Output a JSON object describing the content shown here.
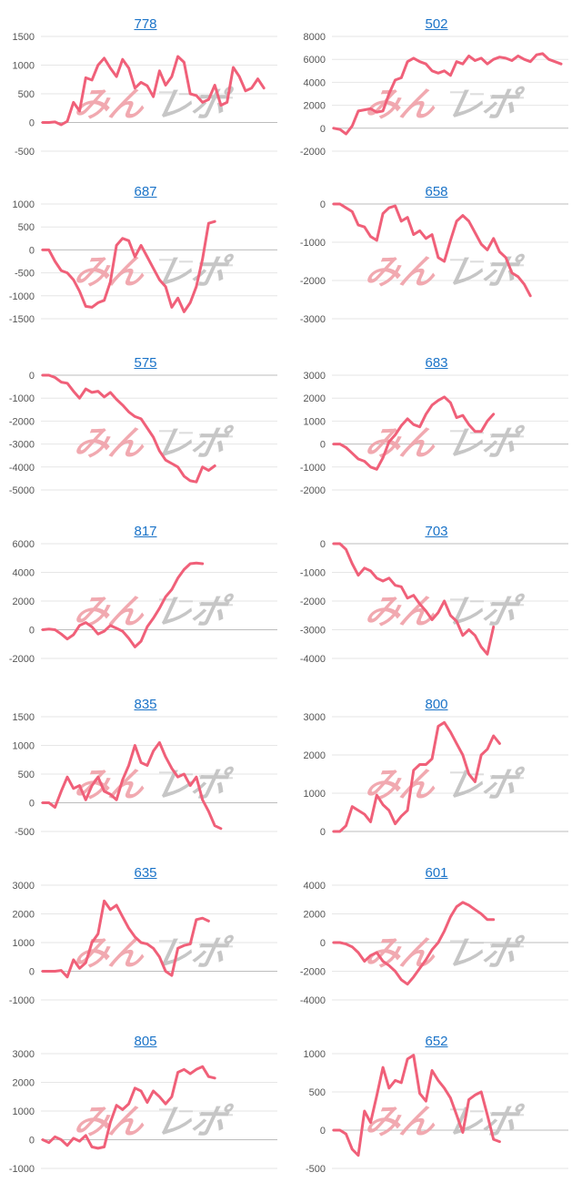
{
  "colors": {
    "line": "#f06079",
    "title_link": "#1a73c8",
    "grid": "#e6e6e6",
    "zero_line": "#bdbdbd",
    "watermark_pink": "#f0a0a8",
    "watermark_gray": "#c0c0c0"
  },
  "watermark": {
    "text_left": "みん",
    "text_right": "レポ"
  },
  "chart_data": [
    {
      "type": "line",
      "title": "778",
      "ylim": [
        -500,
        1500
      ],
      "yticks": [
        1500,
        1000,
        500,
        0,
        -500
      ],
      "values": [
        0,
        0,
        10,
        -40,
        20,
        350,
        200,
        780,
        740,
        1000,
        1120,
        950,
        800,
        1100,
        950,
        600,
        700,
        640,
        450,
        900,
        650,
        800,
        1150,
        1050,
        500,
        470,
        350,
        400,
        650,
        300,
        350,
        960,
        800,
        550,
        600,
        760,
        600
      ]
    },
    {
      "type": "line",
      "title": "502",
      "ylim": [
        -2000,
        8000
      ],
      "yticks": [
        8000,
        6000,
        4000,
        2000,
        0,
        -2000
      ],
      "values": [
        0,
        -100,
        -500,
        200,
        1500,
        1600,
        1700,
        1400,
        1500,
        3000,
        4200,
        4400,
        5800,
        6100,
        5800,
        5600,
        5000,
        4800,
        5000,
        4600,
        5800,
        5600,
        6300,
        5900,
        6100,
        5600,
        6000,
        6200,
        6100,
        5900,
        6300,
        6000,
        5800,
        6400,
        6500,
        6000,
        5800,
        5600
      ]
    },
    {
      "type": "line",
      "title": "687",
      "ylim": [
        -1500,
        1000
      ],
      "yticks": [
        1000,
        500,
        0,
        -500,
        -1000,
        -1500
      ],
      "values": [
        0,
        0,
        -250,
        -450,
        -500,
        -650,
        -900,
        -1230,
        -1250,
        -1150,
        -1100,
        -700,
        100,
        250,
        200,
        -150,
        100,
        -150,
        -400,
        -650,
        -800,
        -1250,
        -1050,
        -1350,
        -1150,
        -800,
        -200,
        580,
        620
      ]
    },
    {
      "type": "line",
      "title": "658",
      "ylim": [
        -3000,
        0
      ],
      "yticks": [
        0,
        -1000,
        -2000,
        -3000
      ],
      "values": [
        0,
        0,
        -100,
        -200,
        -550,
        -600,
        -850,
        -950,
        -250,
        -100,
        -50,
        -450,
        -350,
        -800,
        -700,
        -900,
        -800,
        -1400,
        -1500,
        -950,
        -450,
        -300,
        -450,
        -750,
        -1050,
        -1200,
        -900,
        -1250,
        -1400,
        -1800,
        -1900,
        -2100,
        -2400
      ]
    },
    {
      "type": "line",
      "title": "575",
      "ylim": [
        -5000,
        0
      ],
      "yticks": [
        0,
        -1000,
        -2000,
        -3000,
        -4000,
        -5000
      ],
      "values": [
        0,
        0,
        -100,
        -300,
        -350,
        -700,
        -1000,
        -600,
        -750,
        -700,
        -950,
        -750,
        -1050,
        -1300,
        -1600,
        -1800,
        -1900,
        -2300,
        -2700,
        -3300,
        -3700,
        -3850,
        -4000,
        -4400,
        -4600,
        -4650,
        -4000,
        -4150,
        -3950
      ]
    },
    {
      "type": "line",
      "title": "683",
      "ylim": [
        -2000,
        3000
      ],
      "yticks": [
        3000,
        2000,
        1000,
        0,
        -1000,
        -2000
      ],
      "values": [
        0,
        0,
        -150,
        -400,
        -650,
        -750,
        -1000,
        -1100,
        -600,
        100,
        400,
        800,
        1100,
        850,
        750,
        1300,
        1700,
        1900,
        2050,
        1800,
        1150,
        1250,
        850,
        550,
        550,
        1000,
        1300
      ]
    },
    {
      "type": "line",
      "title": "817",
      "ylim": [
        -2000,
        6000
      ],
      "yticks": [
        6000,
        4000,
        2000,
        0,
        -2000
      ],
      "values": [
        0,
        50,
        0,
        -300,
        -650,
        -350,
        300,
        500,
        200,
        -300,
        -100,
        300,
        100,
        -100,
        -600,
        -1200,
        -800,
        200,
        800,
        1500,
        2300,
        2800,
        3600,
        4200,
        4600,
        4650,
        4600
      ]
    },
    {
      "type": "line",
      "title": "703",
      "ylim": [
        -4000,
        0
      ],
      "yticks": [
        0,
        -1000,
        -2000,
        -3000,
        -4000
      ],
      "values": [
        0,
        0,
        -200,
        -700,
        -1100,
        -850,
        -950,
        -1200,
        -1300,
        -1200,
        -1450,
        -1500,
        -1900,
        -1800,
        -2100,
        -2350,
        -2650,
        -2400,
        -2000,
        -2500,
        -2700,
        -3200,
        -3000,
        -3200,
        -3600,
        -3850,
        -2900
      ]
    },
    {
      "type": "line",
      "title": "835",
      "ylim": [
        -500,
        1500
      ],
      "yticks": [
        1500,
        1000,
        500,
        0,
        -500
      ],
      "values": [
        0,
        0,
        -80,
        200,
        450,
        250,
        300,
        50,
        300,
        450,
        200,
        150,
        50,
        400,
        650,
        1000,
        700,
        650,
        900,
        1050,
        800,
        600,
        450,
        500,
        300,
        450,
        50,
        -150,
        -400,
        -450
      ]
    },
    {
      "type": "line",
      "title": "800",
      "ylim": [
        0,
        3000
      ],
      "yticks": [
        3000,
        2000,
        1000,
        0
      ],
      "values": [
        0,
        0,
        150,
        650,
        550,
        450,
        250,
        950,
        700,
        550,
        200,
        400,
        550,
        1600,
        1750,
        1750,
        1900,
        2750,
        2850,
        2600,
        2300,
        2000,
        1500,
        1300,
        2000,
        2150,
        2500,
        2300
      ]
    },
    {
      "type": "line",
      "title": "635",
      "ylim": [
        -1000,
        3000
      ],
      "yticks": [
        3000,
        2000,
        1000,
        0,
        -1000
      ],
      "values": [
        0,
        0,
        0,
        30,
        -200,
        400,
        100,
        300,
        1000,
        1300,
        2450,
        2150,
        2300,
        1900,
        1500,
        1200,
        1000,
        950,
        800,
        500,
        0,
        -150,
        800,
        900,
        950,
        1800,
        1850,
        1750
      ]
    },
    {
      "type": "line",
      "title": "601",
      "ylim": [
        -4000,
        4000
      ],
      "yticks": [
        4000,
        2000,
        0,
        -2000,
        -4000
      ],
      "values": [
        0,
        0,
        -100,
        -300,
        -700,
        -1300,
        -900,
        -700,
        -1300,
        -1600,
        -2000,
        -2600,
        -2900,
        -2400,
        -1800,
        -1200,
        -500,
        0,
        800,
        1800,
        2500,
        2800,
        2600,
        2300,
        2000,
        1600,
        1600
      ]
    },
    {
      "type": "line",
      "title": "805",
      "ylim": [
        -1000,
        3000
      ],
      "yticks": [
        3000,
        2000,
        1000,
        0,
        -1000
      ],
      "values": [
        0,
        -100,
        100,
        0,
        -200,
        50,
        -50,
        150,
        -250,
        -300,
        -250,
        600,
        1200,
        1050,
        1250,
        1800,
        1700,
        1300,
        1700,
        1500,
        1250,
        1500,
        2350,
        2450,
        2300,
        2450,
        2550,
        2200,
        2150
      ]
    },
    {
      "type": "line",
      "title": "652",
      "ylim": [
        -500,
        1000
      ],
      "yticks": [
        1000,
        500,
        0,
        -500
      ],
      "values": [
        0,
        0,
        -50,
        -250,
        -330,
        250,
        100,
        450,
        820,
        550,
        650,
        620,
        930,
        980,
        480,
        380,
        780,
        650,
        550,
        420,
        200,
        -30,
        400,
        460,
        500,
        200,
        -120,
        -150
      ]
    }
  ]
}
